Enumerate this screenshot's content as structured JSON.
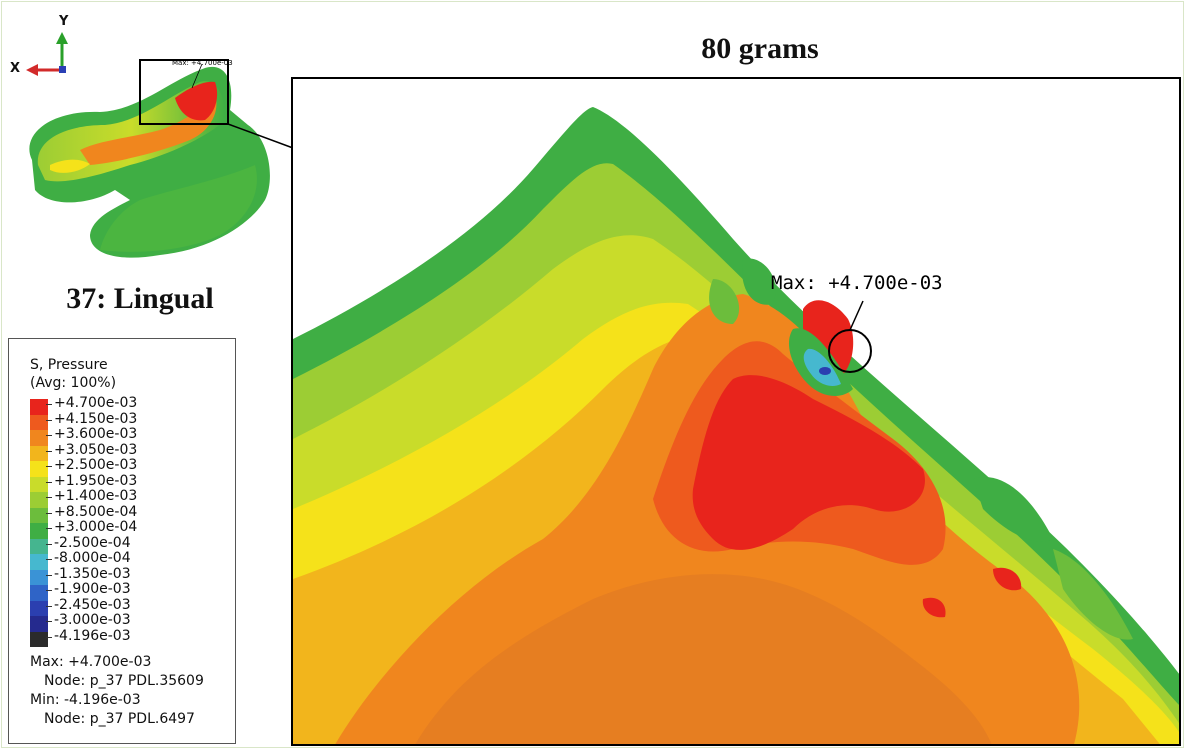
{
  "figure": {
    "main_title": "80 grams",
    "tooth_label": "37: Lingual"
  },
  "axes_triad": {
    "y_label": "Y",
    "x_label": "X"
  },
  "thumbnail": {
    "max_label": "Max: +4.700e-03"
  },
  "zoom_view": {
    "max_annotation": "Max: +4.700e-03"
  },
  "legend": {
    "title": "S, Pressure",
    "subtitle": "(Avg: 100%)",
    "entries": [
      {
        "value": "+4.700e-03",
        "color": "#e8241c"
      },
      {
        "value": "+4.150e-03",
        "color": "#ee5a1e"
      },
      {
        "value": "+3.600e-03",
        "color": "#f0861e"
      },
      {
        "value": "+3.050e-03",
        "color": "#f2b51c"
      },
      {
        "value": "+2.500e-03",
        "color": "#f5e21a"
      },
      {
        "value": "+1.950e-03",
        "color": "#c9dc2a"
      },
      {
        "value": "+1.400e-03",
        "color": "#9ccd34"
      },
      {
        "value": "+8.500e-04",
        "color": "#6cbd3c"
      },
      {
        "value": "+3.000e-04",
        "color": "#3fae44"
      },
      {
        "value": "-2.500e-04",
        "color": "#45b58f"
      },
      {
        "value": "-8.000e-04",
        "color": "#46b8cf"
      },
      {
        "value": "-1.350e-03",
        "color": "#3a93d6"
      },
      {
        "value": "-1.900e-03",
        "color": "#2f64c7"
      },
      {
        "value": "-2.450e-03",
        "color": "#2b3fb0"
      },
      {
        "value": "-3.000e-03",
        "color": "#252a8e"
      },
      {
        "value": "-4.196e-03",
        "color": "#2b2b2b"
      }
    ],
    "max_line": "Max: +4.700e-03",
    "max_node": "Node: p_37 PDL.35609",
    "min_line": "Min: -4.196e-03",
    "min_node": "Node: p_37 PDL.6497"
  }
}
